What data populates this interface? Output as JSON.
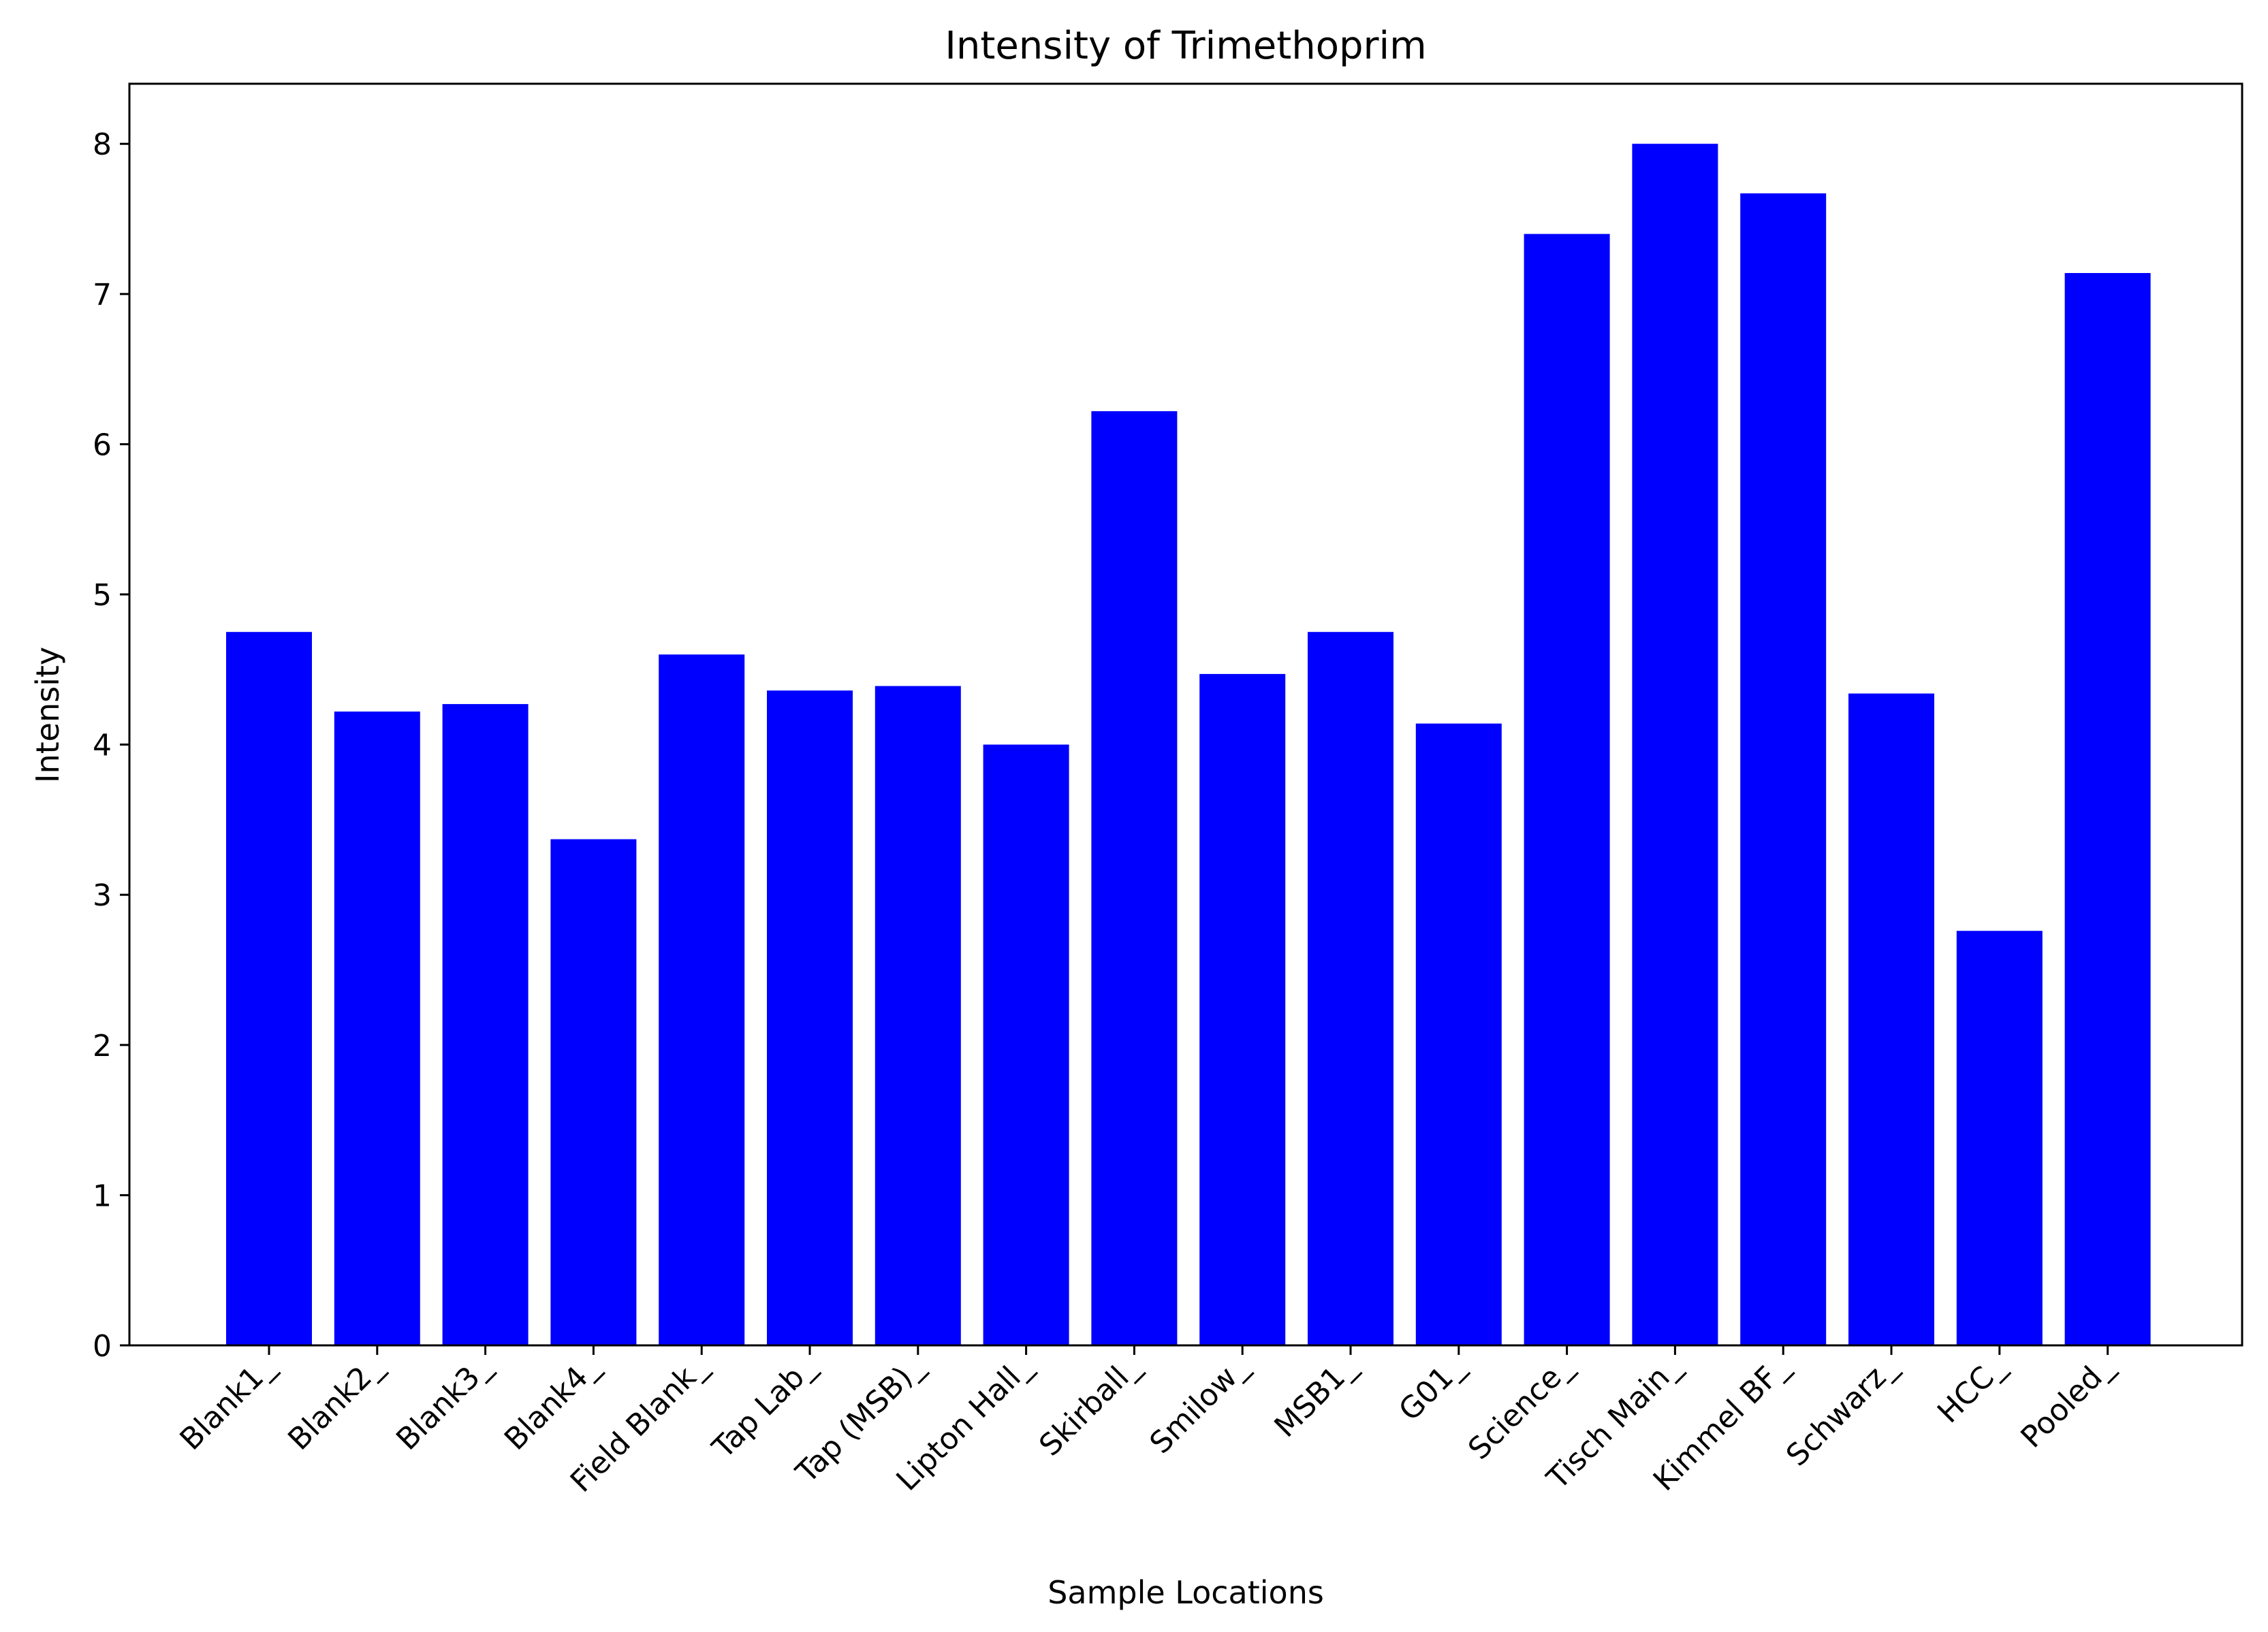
{
  "chart_data": {
    "type": "bar",
    "title": "Intensity of Trimethoprim",
    "xlabel": "Sample Locations",
    "ylabel": "Intensity",
    "categories": [
      "Blank1_",
      "Blank2_",
      "Blank3_",
      "Blank4_",
      "Field Blank_",
      "Tap Lab_",
      "Tap (MSB)_",
      "Lipton Hall_",
      "Skirball_",
      "Smilow_",
      "MSB1_",
      "G01_",
      "Science_",
      "Tisch Main_",
      "Kimmel BF_",
      "Schwarz_",
      "HCC_",
      "Pooled_"
    ],
    "values": [
      4.75,
      4.22,
      4.27,
      3.37,
      4.6,
      4.36,
      4.39,
      4.0,
      6.22,
      4.47,
      4.75,
      4.14,
      7.4,
      8.0,
      7.67,
      4.34,
      2.76,
      7.14
    ],
    "ylim": [
      0,
      8.4
    ],
    "yticks": [
      0,
      1,
      2,
      3,
      4,
      5,
      6,
      7,
      8
    ],
    "bar_color": "#0000ff",
    "grid": false
  }
}
